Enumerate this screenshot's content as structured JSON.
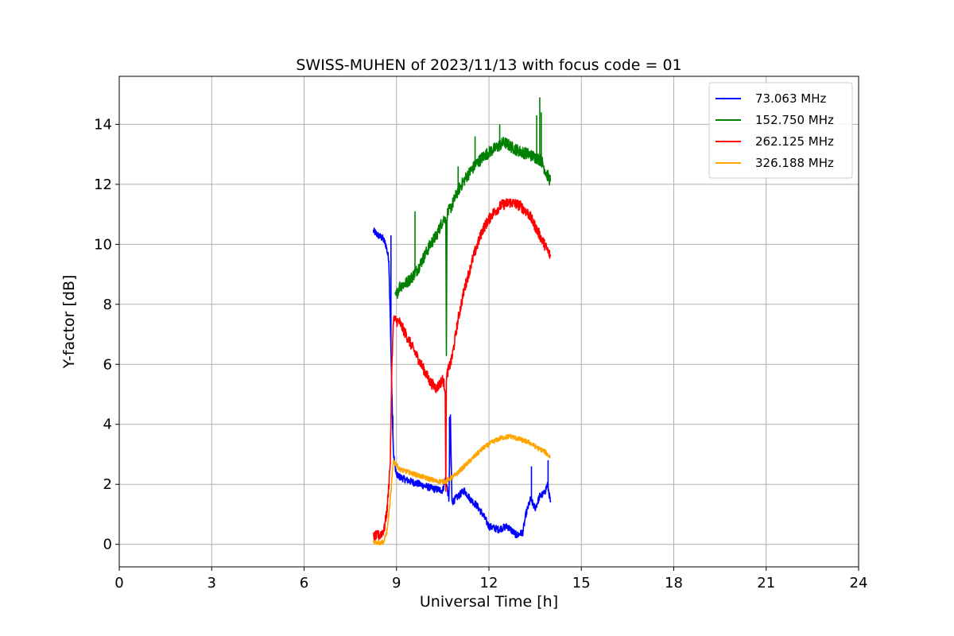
{
  "chart_data": {
    "type": "line",
    "title": "SWISS-MUHEN of 2023/11/13 with focus code = 01",
    "xlabel": "Universal Time [h]",
    "ylabel": "Y-factor [dB]",
    "xlim": [
      0,
      24
    ],
    "ylim": [
      -0.75,
      15.6
    ],
    "xticks": [
      0,
      3,
      6,
      9,
      12,
      15,
      18,
      21,
      24
    ],
    "yticks": [
      0,
      2,
      4,
      6,
      8,
      10,
      12,
      14
    ],
    "grid": true,
    "legend_position": "top-right",
    "series": [
      {
        "name": "73.063 MHz",
        "color": "#0000ff",
        "points": [
          [
            8.25,
            10.45
          ],
          [
            8.4,
            10.3
          ],
          [
            8.55,
            10.2
          ],
          [
            8.65,
            10.0
          ],
          [
            8.75,
            9.5
          ],
          [
            8.8,
            7.5
          ],
          [
            8.85,
            5.0
          ],
          [
            8.9,
            3.0
          ],
          [
            9.0,
            2.3
          ],
          [
            9.3,
            2.15
          ],
          [
            9.6,
            2.05
          ],
          [
            9.9,
            1.95
          ],
          [
            10.2,
            1.85
          ],
          [
            10.5,
            1.8
          ],
          [
            10.6,
            2.2
          ],
          [
            10.7,
            1.5
          ],
          [
            10.75,
            4.2
          ],
          [
            10.8,
            1.4
          ],
          [
            11.0,
            1.6
          ],
          [
            11.2,
            1.8
          ],
          [
            11.4,
            1.5
          ],
          [
            11.6,
            1.3
          ],
          [
            11.8,
            1.0
          ],
          [
            12.0,
            0.6
          ],
          [
            12.3,
            0.5
          ],
          [
            12.6,
            0.6
          ],
          [
            12.9,
            0.3
          ],
          [
            13.1,
            0.4
          ],
          [
            13.2,
            1.0
          ],
          [
            13.35,
            1.5
          ],
          [
            13.5,
            1.2
          ],
          [
            13.65,
            1.6
          ],
          [
            13.8,
            1.7
          ],
          [
            13.9,
            2.0
          ],
          [
            14.0,
            1.4
          ]
        ],
        "spikes": [
          [
            8.82,
            10.3
          ],
          [
            8.88,
            4.3
          ],
          [
            10.72,
            4.25
          ],
          [
            13.38,
            2.6
          ],
          [
            13.92,
            2.8
          ]
        ]
      },
      {
        "name": "152.750 MHz",
        "color": "#008000",
        "points": [
          [
            8.95,
            8.2
          ],
          [
            9.1,
            8.6
          ],
          [
            9.3,
            8.7
          ],
          [
            9.5,
            8.9
          ],
          [
            9.7,
            9.2
          ],
          [
            9.9,
            9.6
          ],
          [
            10.1,
            10.0
          ],
          [
            10.3,
            10.3
          ],
          [
            10.5,
            10.8
          ],
          [
            10.6,
            10.9
          ],
          [
            10.62,
            6.4
          ],
          [
            10.64,
            11.0
          ],
          [
            10.8,
            11.3
          ],
          [
            11.0,
            11.8
          ],
          [
            11.3,
            12.3
          ],
          [
            11.6,
            12.7
          ],
          [
            11.9,
            13.0
          ],
          [
            12.2,
            13.2
          ],
          [
            12.5,
            13.4
          ],
          [
            12.8,
            13.2
          ],
          [
            13.0,
            13.1
          ],
          [
            13.3,
            13.0
          ],
          [
            13.5,
            12.9
          ],
          [
            13.7,
            12.8
          ],
          [
            13.85,
            12.4
          ],
          [
            14.0,
            12.1
          ]
        ],
        "spikes": [
          [
            9.6,
            11.1
          ],
          [
            11.0,
            12.6
          ],
          [
            11.55,
            13.6
          ],
          [
            12.35,
            14.0
          ],
          [
            13.55,
            14.3
          ],
          [
            13.65,
            14.9
          ],
          [
            13.7,
            14.4
          ]
        ]
      },
      {
        "name": "262.125 MHz",
        "color": "#ff0000",
        "points": [
          [
            8.25,
            0.25
          ],
          [
            8.45,
            0.3
          ],
          [
            8.6,
            0.5
          ],
          [
            8.7,
            1.2
          ],
          [
            8.8,
            2.8
          ],
          [
            8.85,
            6.0
          ],
          [
            8.9,
            7.5
          ],
          [
            9.1,
            7.4
          ],
          [
            9.3,
            7.0
          ],
          [
            9.5,
            6.6
          ],
          [
            9.7,
            6.2
          ],
          [
            9.9,
            5.8
          ],
          [
            10.1,
            5.4
          ],
          [
            10.3,
            5.2
          ],
          [
            10.5,
            5.5
          ],
          [
            10.58,
            5.2
          ],
          [
            10.6,
            1.6
          ],
          [
            10.62,
            5.6
          ],
          [
            10.8,
            6.2
          ],
          [
            11.0,
            7.5
          ],
          [
            11.2,
            8.5
          ],
          [
            11.5,
            9.6
          ],
          [
            11.8,
            10.5
          ],
          [
            12.1,
            11.0
          ],
          [
            12.4,
            11.3
          ],
          [
            12.7,
            11.4
          ],
          [
            13.0,
            11.3
          ],
          [
            13.3,
            11.0
          ],
          [
            13.6,
            10.4
          ],
          [
            13.8,
            10.0
          ],
          [
            14.0,
            9.6
          ]
        ]
      },
      {
        "name": "326.188 MHz",
        "color": "#ffa500",
        "points": [
          [
            8.25,
            0.1
          ],
          [
            8.45,
            0.05
          ],
          [
            8.6,
            0.1
          ],
          [
            8.7,
            0.5
          ],
          [
            8.8,
            1.5
          ],
          [
            8.9,
            2.8
          ],
          [
            9.1,
            2.5
          ],
          [
            9.4,
            2.4
          ],
          [
            9.7,
            2.3
          ],
          [
            10.0,
            2.2
          ],
          [
            10.3,
            2.1
          ],
          [
            10.6,
            2.1
          ],
          [
            10.9,
            2.3
          ],
          [
            11.2,
            2.6
          ],
          [
            11.5,
            2.9
          ],
          [
            11.8,
            3.2
          ],
          [
            12.1,
            3.4
          ],
          [
            12.4,
            3.55
          ],
          [
            12.7,
            3.6
          ],
          [
            13.0,
            3.5
          ],
          [
            13.3,
            3.4
          ],
          [
            13.6,
            3.2
          ],
          [
            13.8,
            3.1
          ],
          [
            14.0,
            2.9
          ]
        ]
      }
    ]
  }
}
